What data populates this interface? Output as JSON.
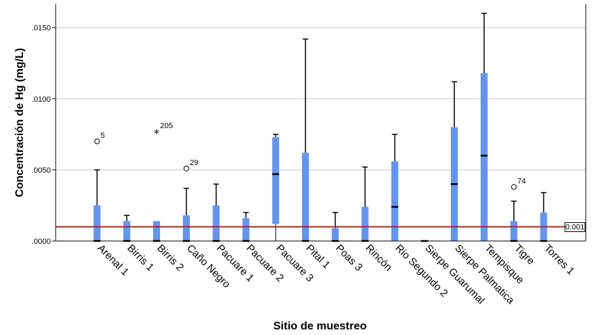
{
  "chart_data": {
    "type": "boxplot",
    "xlabel": "Sitio de muestreo",
    "ylabel": "Concentración de Hg (mg/L)",
    "ylim": [
      0,
      0.0165
    ],
    "yticks": [
      {
        "value": 0,
        "label": ".0000"
      },
      {
        "value": 0.005,
        "label": ".0050"
      },
      {
        "value": 0.01,
        "label": ".0100"
      },
      {
        "value": 0.015,
        "label": ".0150"
      }
    ],
    "grid": true,
    "box_color": "#6495ed",
    "reference_line": {
      "value": 0.001,
      "label": "0.001",
      "color": "#a52a2a"
    },
    "categories": [
      {
        "name": "Arenal 1",
        "min": 0,
        "q1": 0,
        "median": 0,
        "q3": 0.0025,
        "max": 0.005
      },
      {
        "name": "Birris 1",
        "min": 0,
        "q1": 0,
        "median": 0,
        "q3": 0.0014,
        "max": 0.0018
      },
      {
        "name": "Birris 2",
        "min": 0,
        "q1": 0,
        "median": 0,
        "q3": 0.0014,
        "max": 0.0014
      },
      {
        "name": "Caño Negro",
        "min": 0,
        "q1": 0,
        "median": 0,
        "q3": 0.0018,
        "max": 0.0037
      },
      {
        "name": "Pacuare 1",
        "min": 0,
        "q1": 0,
        "median": 0,
        "q3": 0.0025,
        "max": 0.004
      },
      {
        "name": "Pacuare 2",
        "min": 0,
        "q1": 0,
        "median": 0,
        "q3": 0.0016,
        "max": 0.002
      },
      {
        "name": "Pacuare 3",
        "min": 0,
        "q1": 0.0012,
        "median": 0.0047,
        "q3": 0.0073,
        "max": 0.0075
      },
      {
        "name": "Pital 1",
        "min": 0,
        "q1": 0,
        "median": 0,
        "q3": 0.0062,
        "max": 0.0142
      },
      {
        "name": "Poas 3",
        "min": 0,
        "q1": 0,
        "median": 0,
        "q3": 0.0009,
        "max": 0.002
      },
      {
        "name": "Rincón",
        "min": 0,
        "q1": 0,
        "median": 0,
        "q3": 0.0024,
        "max": 0.0052
      },
      {
        "name": "Rio Segundo 2",
        "min": 0,
        "q1": 0,
        "median": 0.0024,
        "q3": 0.0056,
        "max": 0.0075
      },
      {
        "name": "Sierpe Guarumal",
        "min": 0,
        "q1": 0,
        "median": 0,
        "q3": 0,
        "max": 0
      },
      {
        "name": "Sierpe Palmatica",
        "min": 0,
        "q1": 0,
        "median": 0.004,
        "q3": 0.008,
        "max": 0.0112
      },
      {
        "name": "Tempisque",
        "min": 0,
        "q1": 0,
        "median": 0.006,
        "q3": 0.0118,
        "max": 0.016
      },
      {
        "name": "Tigre",
        "min": 0,
        "q1": 0,
        "median": 0,
        "q3": 0.0014,
        "max": 0.0028
      },
      {
        "name": "Torres 1",
        "min": 0,
        "q1": 0,
        "median": 0,
        "q3": 0.002,
        "max": 0.0034
      }
    ],
    "outliers": [
      {
        "category_index": 0,
        "value": 0.007,
        "label": "5",
        "marker": "circle"
      },
      {
        "category_index": 2,
        "value": 0.0077,
        "label": "205",
        "marker": "star"
      },
      {
        "category_index": 3,
        "value": 0.0051,
        "label": "29",
        "marker": "circle"
      },
      {
        "category_index": 14,
        "value": 0.0038,
        "label": "74",
        "marker": "circle"
      }
    ]
  }
}
